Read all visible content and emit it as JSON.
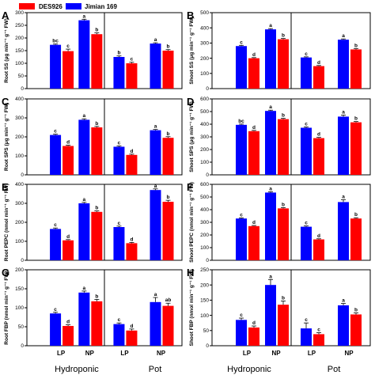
{
  "colors": {
    "DES926": "#ff0000",
    "Jimian 169": "#0000ff"
  },
  "legend": [
    "DES926",
    "Jimian 169"
  ],
  "x_categories": [
    "LP",
    "NP",
    "LP",
    "NP"
  ],
  "groups": [
    "Hydroponic",
    "Pot"
  ],
  "chart_data": [
    {
      "panel": "A",
      "type": "bar",
      "ylabel": "Root SS (μg min⁻¹ g⁻¹ FW)",
      "ylim": [
        0,
        300
      ],
      "yticks": [
        0,
        50,
        100,
        150,
        200,
        250,
        300
      ],
      "categories": [
        "Hydroponic LP",
        "Hydroponic NP",
        "Pot LP",
        "Pot NP"
      ],
      "series": [
        {
          "name": "Jimian 169",
          "values": [
            173,
            270,
            125,
            178
          ],
          "errors": [
            3,
            4,
            4,
            3
          ],
          "letters": [
            "bc",
            "a",
            "b",
            "a"
          ]
        },
        {
          "name": "DES926",
          "values": [
            148,
            215,
            100,
            150
          ],
          "errors": [
            8,
            5,
            4,
            4
          ],
          "letters": [
            "c",
            "b",
            "c",
            "b"
          ]
        }
      ]
    },
    {
      "panel": "B",
      "type": "bar",
      "ylabel": "Shoot SS (μg min⁻¹ g⁻¹ FW)",
      "ylim": [
        0,
        500
      ],
      "yticks": [
        0,
        100,
        200,
        300,
        400,
        500
      ],
      "categories": [
        "Hydroponic LP",
        "Hydroponic NP",
        "Pot LP",
        "Pot NP"
      ],
      "series": [
        {
          "name": "Jimian 169",
          "values": [
            280,
            390,
            205,
            322
          ],
          "errors": [
            5,
            5,
            4,
            5
          ],
          "letters": [
            "c",
            "a",
            "c",
            "a"
          ]
        },
        {
          "name": "DES926",
          "values": [
            200,
            325,
            148,
            258
          ],
          "errors": [
            4,
            5,
            4,
            6
          ],
          "letters": [
            "d",
            "b",
            "d",
            "b"
          ]
        }
      ]
    },
    {
      "panel": "C",
      "type": "bar",
      "ylabel": "Root SPS (μg min⁻¹ g⁻¹ FW)",
      "ylim": [
        0,
        400
      ],
      "yticks": [
        0,
        100,
        200,
        300,
        400
      ],
      "categories": [
        "Hydroponic LP",
        "Hydroponic NP",
        "Pot LP",
        "Pot NP"
      ],
      "series": [
        {
          "name": "Jimian 169",
          "values": [
            210,
            290,
            148,
            235
          ],
          "errors": [
            4,
            5,
            4,
            4
          ],
          "letters": [
            "c",
            "a",
            "c",
            "a"
          ]
        },
        {
          "name": "DES926",
          "values": [
            152,
            250,
            105,
            195
          ],
          "errors": [
            4,
            5,
            4,
            6
          ],
          "letters": [
            "d",
            "b",
            "d",
            "b"
          ]
        }
      ]
    },
    {
      "panel": "D",
      "type": "bar",
      "ylabel": "Shoot SPS (μg min⁻¹ g⁻¹ FW)",
      "ylim": [
        0,
        600
      ],
      "yticks": [
        0,
        100,
        200,
        300,
        400,
        500,
        600
      ],
      "categories": [
        "Hydroponic LP",
        "Hydroponic NP",
        "Pot LP",
        "Pot NP"
      ],
      "series": [
        {
          "name": "Jimian 169",
          "values": [
            395,
            505,
            372,
            460
          ],
          "errors": [
            6,
            6,
            6,
            12
          ],
          "letters": [
            "bc",
            "a",
            "c",
            "a"
          ]
        },
        {
          "name": "DES926",
          "values": [
            345,
            440,
            290,
            415
          ],
          "errors": [
            6,
            6,
            6,
            6
          ],
          "letters": [
            "d",
            "b",
            "d",
            "b"
          ]
        }
      ]
    },
    {
      "panel": "E",
      "type": "bar",
      "ylabel": "Root PEPC (nmol min⁻¹ g⁻¹ FW)",
      "ylim": [
        0,
        400
      ],
      "yticks": [
        0,
        100,
        200,
        300,
        400
      ],
      "categories": [
        "Hydroponic LP",
        "Hydroponic NP",
        "Pot LP",
        "Pot NP"
      ],
      "series": [
        {
          "name": "Jimian 169",
          "values": [
            165,
            300,
            175,
            370
          ],
          "errors": [
            5,
            5,
            5,
            6
          ],
          "letters": [
            "c",
            "a",
            "c",
            "a"
          ]
        },
        {
          "name": "DES926",
          "values": [
            105,
            255,
            90,
            308
          ],
          "errors": [
            4,
            5,
            4,
            8
          ],
          "letters": [
            "d",
            "b",
            "d",
            "b"
          ]
        }
      ]
    },
    {
      "panel": "F",
      "type": "bar",
      "ylabel": "Shoot PEPC (nmol min⁻¹ g⁻¹ FW)",
      "ylim": [
        0,
        600
      ],
      "yticks": [
        0,
        100,
        200,
        300,
        400,
        500,
        600
      ],
      "categories": [
        "Hydroponic LP",
        "Hydroponic NP",
        "Pot LP",
        "Pot NP"
      ],
      "series": [
        {
          "name": "Jimian 169",
          "values": [
            330,
            535,
            265,
            460
          ],
          "errors": [
            5,
            6,
            6,
            18
          ],
          "letters": [
            "c",
            "a",
            "c",
            "a"
          ]
        },
        {
          "name": "DES926",
          "values": [
            270,
            410,
            165,
            330
          ],
          "errors": [
            5,
            6,
            5,
            6
          ],
          "letters": [
            "d",
            "b",
            "d",
            "b"
          ]
        }
      ]
    },
    {
      "panel": "G",
      "type": "bar",
      "ylabel": "Root FBP (nmol min⁻¹ g⁻¹ FW)",
      "ylim": [
        0,
        200
      ],
      "yticks": [
        0,
        50,
        100,
        150,
        200
      ],
      "categories": [
        "Hydroponic LP",
        "Hydroponic NP",
        "Pot LP",
        "Pot NP"
      ],
      "series": [
        {
          "name": "Jimian 169",
          "values": [
            85,
            140,
            57,
            115
          ],
          "errors": [
            3,
            4,
            3,
            12
          ],
          "letters": [
            "c",
            "a",
            "c",
            "a"
          ]
        },
        {
          "name": "DES926",
          "values": [
            52,
            117,
            40,
            105
          ],
          "errors": [
            3,
            5,
            4,
            7
          ],
          "letters": [
            "d",
            "b",
            "d",
            "ab"
          ]
        }
      ]
    },
    {
      "panel": "H",
      "type": "bar",
      "ylabel": "Shoot FBP (nmol min⁻¹ g⁻¹ FW)",
      "ylim": [
        0,
        250
      ],
      "yticks": [
        0,
        50,
        100,
        150,
        200,
        250
      ],
      "categories": [
        "Hydroponic LP",
        "Hydroponic NP",
        "Pot LP",
        "Pot NP"
      ],
      "series": [
        {
          "name": "Jimian 169",
          "values": [
            85,
            200,
            57,
            133
          ],
          "errors": [
            6,
            18,
            18,
            6
          ],
          "letters": [
            "c",
            "a",
            "c",
            "a"
          ]
        },
        {
          "name": "DES926",
          "values": [
            60,
            135,
            38,
            103
          ],
          "errors": [
            5,
            12,
            5,
            5
          ],
          "letters": [
            "d",
            "b",
            "c",
            "b"
          ]
        }
      ]
    }
  ]
}
